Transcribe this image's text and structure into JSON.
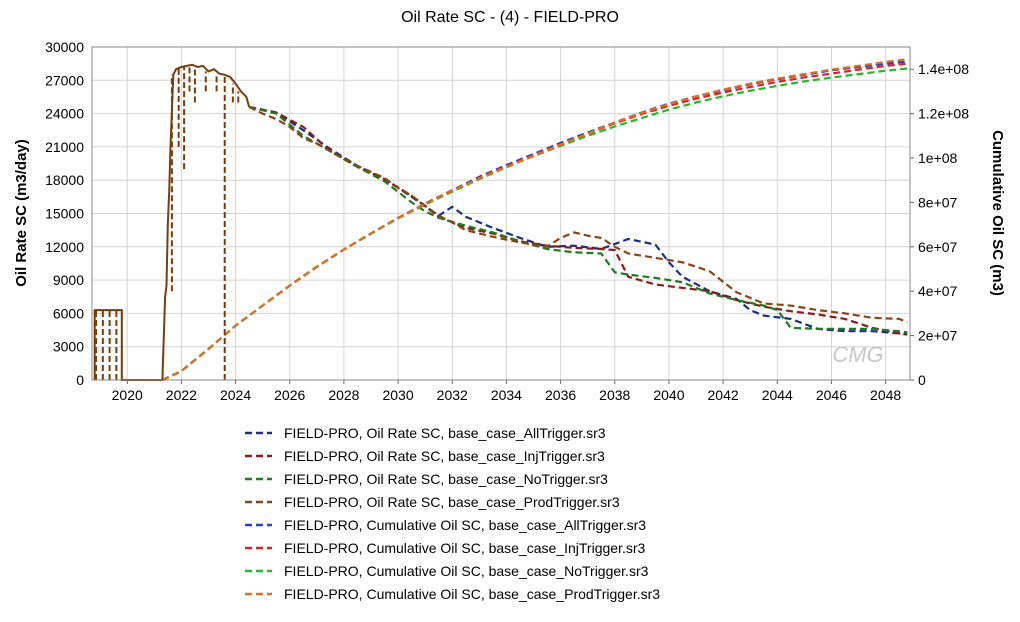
{
  "chart_data": {
    "type": "line",
    "title": "Oil Rate SC - (4) - FIELD-PRO",
    "ylabel_left": "Oil Rate SC (m3/day)",
    "ylabel_right": "Cumulative Oil SC (m3)",
    "xlim": [
      2018.7,
      2048.9
    ],
    "ylim_left": [
      0,
      30000
    ],
    "ylim_right": [
      0,
      150000000
    ],
    "x_ticks": [
      2020,
      2022,
      2024,
      2026,
      2028,
      2030,
      2032,
      2034,
      2036,
      2038,
      2040,
      2042,
      2044,
      2046,
      2048
    ],
    "y_ticks_left": [
      0,
      3000,
      6000,
      9000,
      12000,
      15000,
      18000,
      21000,
      24000,
      27000,
      30000
    ],
    "y_ticks_right": [
      0,
      20000000,
      40000000,
      60000000,
      80000000,
      100000000,
      120000000,
      140000000
    ],
    "x_tick_labels": [
      "2020",
      "2022",
      "2024",
      "2026",
      "2028",
      "2030",
      "2032",
      "2034",
      "2036",
      "2038",
      "2040",
      "2042",
      "2044",
      "2046",
      "2048"
    ],
    "y_tick_labels_left": [
      "0",
      "3000",
      "6000",
      "9000",
      "12000",
      "15000",
      "18000",
      "21000",
      "24000",
      "27000",
      "30000"
    ],
    "y_tick_labels_right": [
      "0",
      "2e+07",
      "4e+07",
      "6e+07",
      "8e+07",
      "1e+08",
      "1.2e+08",
      "1.4e+08"
    ],
    "grid": true,
    "legend_position": "bottom",
    "watermark": "CMG",
    "history": {
      "color": "#7a3d0a",
      "x": [
        2018.8,
        2018.8,
        2019.8,
        2019.8,
        2019.9,
        2019.9,
        2021.0,
        2021.3,
        2021.4,
        2021.45,
        2021.5,
        2021.55,
        2021.6,
        2021.7,
        2021.8,
        2022.0,
        2022.2,
        2022.4,
        2022.6,
        2022.8,
        2023.0,
        2023.2,
        2023.4,
        2023.6,
        2023.8,
        2024.0,
        2024.2,
        2024.4,
        2024.5
      ],
      "y": [
        0,
        6300,
        6300,
        0,
        0,
        0,
        0,
        0,
        7500,
        8500,
        14000,
        17000,
        21000,
        27500,
        28000,
        28200,
        28300,
        28400,
        28200,
        28300,
        27800,
        28000,
        27600,
        27500,
        27300,
        26700,
        26000,
        25500,
        24600
      ]
    },
    "rate_spikes": {
      "x": [
        2018.85,
        2019.1,
        2019.35,
        2019.6,
        2021.65,
        2021.9,
        2022.1,
        2022.3,
        2022.5,
        2022.9,
        2023.3,
        2023.6,
        2023.9,
        2024.1
      ],
      "y_low": [
        0,
        0,
        0,
        0,
        8000,
        21000,
        19000,
        26000,
        25000,
        26000,
        26000,
        0,
        25000,
        25000
      ]
    },
    "series": [
      {
        "name": "FIELD-PRO, Oil Rate SC, base_case_AllTrigger.sr3",
        "axis": "left",
        "color": "#1a2e8c",
        "x": [
          2024.5,
          2025.5,
          2026.5,
          2027.5,
          2028.5,
          2029.5,
          2030.5,
          2031.5,
          2032.0,
          2032.5,
          2033.5,
          2034.5,
          2035.5,
          2036.5,
          2037.5,
          2038.5,
          2039.5,
          2040.0,
          2040.5,
          2041.5,
          2042.5,
          2043.0,
          2043.5,
          2044.5,
          2045.5,
          2046.5,
          2047.5,
          2048.5,
          2048.8
        ],
        "y": [
          24600,
          24100,
          22500,
          20800,
          19300,
          18100,
          16500,
          14800,
          15600,
          14700,
          13700,
          12800,
          12000,
          12100,
          11800,
          12700,
          12200,
          10600,
          9300,
          8000,
          7300,
          6300,
          5800,
          5500,
          4600,
          4400,
          4400,
          4200,
          4100
        ]
      },
      {
        "name": "FIELD-PRO, Oil Rate SC, base_case_InjTrigger.sr3",
        "axis": "left",
        "color": "#8b1a1a",
        "x": [
          2024.5,
          2025.5,
          2026.5,
          2027.5,
          2028.5,
          2029.5,
          2030.5,
          2031.5,
          2032.5,
          2033.5,
          2034.5,
          2035.5,
          2036.5,
          2037.5,
          2038.0,
          2038.5,
          2039.5,
          2040.5,
          2041.5,
          2042.5,
          2043.5,
          2044.5,
          2045.5,
          2046.5,
          2047.5,
          2048.5,
          2048.8
        ],
        "y": [
          24600,
          24100,
          22800,
          20600,
          19200,
          18100,
          16600,
          14700,
          13700,
          13200,
          12500,
          12100,
          11900,
          11800,
          11700,
          9300,
          8600,
          8300,
          8000,
          7200,
          6600,
          6200,
          5900,
          5500,
          4700,
          4200,
          4100
        ]
      },
      {
        "name": "FIELD-PRO, Oil Rate SC, base_case_NoTrigger.sr3",
        "axis": "left",
        "color": "#1e7b1e",
        "x": [
          2024.5,
          2025.5,
          2026.5,
          2027.5,
          2028.5,
          2029.5,
          2030.5,
          2031.0,
          2031.5,
          2032.5,
          2033.5,
          2034.5,
          2035.5,
          2036.5,
          2037.5,
          2038.0,
          2038.5,
          2039.5,
          2040.5,
          2041.5,
          2042.5,
          2043.5,
          2044.0,
          2044.5,
          2045.5,
          2046.5,
          2047.5,
          2048.5,
          2048.8
        ],
        "y": [
          24600,
          24000,
          22000,
          20600,
          19200,
          17900,
          16000,
          15200,
          14600,
          13900,
          13300,
          12500,
          11800,
          11500,
          11400,
          9700,
          9500,
          9200,
          8800,
          7800,
          7200,
          6700,
          6300,
          4700,
          4600,
          4600,
          4600,
          4400,
          4300
        ]
      },
      {
        "name": "FIELD-PRO, Oil Rate SC, base_case_ProdTrigger.sr3",
        "axis": "left",
        "color": "#8b4513",
        "x": [
          2024.5,
          2025.0,
          2025.5,
          2026.0,
          2026.5,
          2027.0,
          2027.5,
          2028.5,
          2029.5,
          2030.0,
          2030.5,
          2031.5,
          2032.0,
          2032.5,
          2033.5,
          2034.5,
          2035.5,
          2036.0,
          2036.5,
          2037.0,
          2037.5,
          2038.0,
          2038.5,
          2039.5,
          2040.5,
          2041.5,
          2042.5,
          2043.5,
          2044.5,
          2045.5,
          2046.5,
          2047.5,
          2048.5,
          2048.8
        ],
        "y": [
          24600,
          24000,
          23500,
          22800,
          21800,
          21300,
          20600,
          19300,
          18200,
          17300,
          16600,
          14800,
          14200,
          13500,
          12900,
          12400,
          12000,
          12800,
          13300,
          13000,
          12800,
          12000,
          11400,
          11000,
          10600,
          9800,
          7900,
          6900,
          6700,
          6300,
          6000,
          5600,
          5500,
          5200
        ]
      },
      {
        "name": "FIELD-PRO,  Cumulative  Oil  SC,  base_case_AllTrigger.sr3",
        "axis": "right",
        "color": "#2244cc",
        "x": [
          2021.3,
          2022.0,
          2023.0,
          2024.0,
          2025.0,
          2026.0,
          2027.0,
          2028.0,
          2029.0,
          2030.0,
          2031.0,
          2032.0,
          2033.0,
          2034.0,
          2035.0,
          2036.0,
          2037.0,
          2038.0,
          2039.0,
          2040.0,
          2041.0,
          2042.0,
          2043.0,
          2044.0,
          2045.0,
          2046.0,
          2047.0,
          2048.0,
          2048.8
        ],
        "y": [
          0,
          4000000,
          14000000,
          24500000,
          33500000,
          42500000,
          51000000,
          58800000,
          66000000,
          73000000,
          79500000,
          85500000,
          91500000,
          96800000,
          101800000,
          106800000,
          111500000,
          116000000,
          120500000,
          124500000,
          127800000,
          130500000,
          133200000,
          135500000,
          137500000,
          139500000,
          141000000,
          142500000,
          143500000
        ]
      },
      {
        "name": "FIELD-PRO,  Cumulative  Oil  SC,  base_case_InjTrigger.sr3",
        "axis": "right",
        "color": "#dd2222",
        "x": [
          2021.3,
          2022.0,
          2023.0,
          2024.0,
          2025.0,
          2026.0,
          2027.0,
          2028.0,
          2029.0,
          2030.0,
          2031.0,
          2032.0,
          2033.0,
          2034.0,
          2035.0,
          2036.0,
          2037.0,
          2038.0,
          2039.0,
          2040.0,
          2041.0,
          2042.0,
          2043.0,
          2044.0,
          2045.0,
          2046.0,
          2047.0,
          2048.0,
          2048.8
        ],
        "y": [
          0,
          4000000,
          14000000,
          24500000,
          33500000,
          42500000,
          51000000,
          58800000,
          66000000,
          73000000,
          79300000,
          85300000,
          91000000,
          96300000,
          101300000,
          106200000,
          111000000,
          115600000,
          119800000,
          123500000,
          126700000,
          129500000,
          132000000,
          134300000,
          136300000,
          138000000,
          139800000,
          141500000,
          142500000
        ]
      },
      {
        "name": "FIELD-PRO,  Cumulative  Oil  SC,  base_case_NoTrigger.sr3",
        "axis": "right",
        "color": "#22bb22",
        "x": [
          2021.3,
          2022.0,
          2023.0,
          2024.0,
          2025.0,
          2026.0,
          2027.0,
          2028.0,
          2029.0,
          2030.0,
          2031.0,
          2032.0,
          2033.0,
          2034.0,
          2035.0,
          2036.0,
          2037.0,
          2038.0,
          2039.0,
          2040.0,
          2041.0,
          2042.0,
          2043.0,
          2044.0,
          2045.0,
          2046.0,
          2047.0,
          2048.0,
          2048.8
        ],
        "y": [
          0,
          4000000,
          14000000,
          24500000,
          33500000,
          42500000,
          51000000,
          58800000,
          66000000,
          72800000,
          79000000,
          84800000,
          90500000,
          95800000,
          100800000,
          105500000,
          110000000,
          114200000,
          118000000,
          121800000,
          125000000,
          127800000,
          130300000,
          132500000,
          134500000,
          136200000,
          137800000,
          139300000,
          140300000
        ]
      },
      {
        "name": "FIELD-PRO,  Cumulative  Oil  SC,  base_case_ProdTrigger.sr3",
        "axis": "right",
        "color": "#e07020",
        "x": [
          2021.3,
          2022.0,
          2023.0,
          2024.0,
          2025.0,
          2026.0,
          2027.0,
          2028.0,
          2029.0,
          2030.0,
          2031.0,
          2032.0,
          2033.0,
          2034.0,
          2035.0,
          2036.0,
          2037.0,
          2038.0,
          2039.0,
          2040.0,
          2041.0,
          2042.0,
          2043.0,
          2044.0,
          2045.0,
          2046.0,
          2047.0,
          2048.0,
          2048.8
        ],
        "y": [
          0,
          4000000,
          14000000,
          24500000,
          33500000,
          42500000,
          51000000,
          58800000,
          66000000,
          73000000,
          79300000,
          85300000,
          90800000,
          96000000,
          101000000,
          106000000,
          111000000,
          116000000,
          120300000,
          124300000,
          127800000,
          130800000,
          133500000,
          135800000,
          137800000,
          139800000,
          141500000,
          143300000,
          144500000
        ]
      }
    ]
  }
}
